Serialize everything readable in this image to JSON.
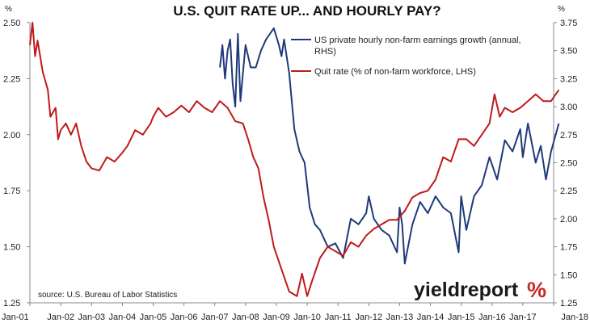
{
  "chart_data": {
    "type": "line",
    "title": "U.S. QUIT RATE UP... AND HOURLY PAY?",
    "left_axis": {
      "unit": "%",
      "ylim": [
        1.25,
        2.5
      ],
      "ticks": [
        "2.50",
        "2.25",
        "2.00",
        "1.75",
        "1.50",
        "1.25"
      ]
    },
    "right_axis": {
      "unit": "%",
      "ylim": [
        1.25,
        3.75
      ],
      "ticks": [
        "3.75",
        "3.50",
        "3.25",
        "3.00",
        "2.75",
        "2.50",
        "2.25",
        "2.00",
        "1.75",
        "1.50",
        "1.25"
      ]
    },
    "x_ticks": [
      "Jan-01",
      "Jan-02",
      "Jan-03",
      "Jan-04",
      "Jan-05",
      "Jan-06",
      "Jan-07",
      "Jan-08",
      "Jan-09",
      "Jan-10",
      "Jan-11",
      "Jan-12",
      "Jan-13",
      "Jan-14",
      "Jan-15",
      "Jan-16",
      "Jan-17",
      "Jan-18"
    ],
    "source": "source: U.S. Bureau of Labor Statistics",
    "logo": "yieldreport %",
    "legend_position": "top-right",
    "series": [
      {
        "name": "US private hourly non-farm earnings growth (annual, RHS)",
        "axis": "right",
        "color": "#1f3a7a",
        "points": [
          [
            "2007-03",
            3.35
          ],
          [
            "2007-04",
            3.55
          ],
          [
            "2007-05",
            3.25
          ],
          [
            "2007-06",
            3.5
          ],
          [
            "2007-07",
            3.6
          ],
          [
            "2007-08",
            3.2
          ],
          [
            "2007-09",
            3.0
          ],
          [
            "2007-10",
            3.65
          ],
          [
            "2007-11",
            3.05
          ],
          [
            "2007-12",
            3.3
          ],
          [
            "2008-01",
            3.55
          ],
          [
            "2008-03",
            3.35
          ],
          [
            "2008-05",
            3.35
          ],
          [
            "2008-07",
            3.5
          ],
          [
            "2008-09",
            3.6
          ],
          [
            "2008-12",
            3.7
          ],
          [
            "2009-02",
            3.55
          ],
          [
            "2009-03",
            3.45
          ],
          [
            "2009-04",
            3.6
          ],
          [
            "2009-06",
            3.3
          ],
          [
            "2009-08",
            2.8
          ],
          [
            "2009-10",
            2.6
          ],
          [
            "2009-12",
            2.5
          ],
          [
            "2010-02",
            2.1
          ],
          [
            "2010-04",
            1.95
          ],
          [
            "2010-06",
            1.9
          ],
          [
            "2010-09",
            1.75
          ],
          [
            "2010-12",
            1.78
          ],
          [
            "2011-03",
            1.65
          ],
          [
            "2011-06",
            2.0
          ],
          [
            "2011-09",
            1.95
          ],
          [
            "2011-12",
            2.05
          ],
          [
            "2012-01",
            2.2
          ],
          [
            "2012-03",
            2.0
          ],
          [
            "2012-06",
            1.9
          ],
          [
            "2012-09",
            1.85
          ],
          [
            "2012-12",
            1.7
          ],
          [
            "2013-01",
            2.1
          ],
          [
            "2013-02",
            1.95
          ],
          [
            "2013-03",
            1.6
          ],
          [
            "2013-06",
            1.95
          ],
          [
            "2013-09",
            2.15
          ],
          [
            "2013-12",
            2.05
          ],
          [
            "2014-03",
            2.2
          ],
          [
            "2014-06",
            2.1
          ],
          [
            "2014-09",
            2.05
          ],
          [
            "2014-12",
            1.7
          ],
          [
            "2015-01",
            2.2
          ],
          [
            "2015-03",
            1.9
          ],
          [
            "2015-06",
            2.2
          ],
          [
            "2015-09",
            2.3
          ],
          [
            "2015-12",
            2.55
          ],
          [
            "2016-03",
            2.35
          ],
          [
            "2016-06",
            2.7
          ],
          [
            "2016-09",
            2.6
          ],
          [
            "2016-12",
            2.8
          ],
          [
            "2017-01",
            2.55
          ],
          [
            "2017-03",
            2.85
          ],
          [
            "2017-06",
            2.5
          ],
          [
            "2017-08",
            2.65
          ],
          [
            "2017-10",
            2.35
          ],
          [
            "2017-12",
            2.6
          ],
          [
            "2018-03",
            2.85
          ]
        ]
      },
      {
        "name": "Quit rate (% of non-farm workforce, LHS)",
        "axis": "left",
        "color": "#c0191c",
        "points": [
          [
            "2001-01",
            2.4
          ],
          [
            "2001-02",
            2.5
          ],
          [
            "2001-03",
            2.35
          ],
          [
            "2001-04",
            2.42
          ],
          [
            "2001-06",
            2.28
          ],
          [
            "2001-08",
            2.2
          ],
          [
            "2001-09",
            2.08
          ],
          [
            "2001-11",
            2.12
          ],
          [
            "2001-12",
            1.98
          ],
          [
            "2002-01",
            2.02
          ],
          [
            "2002-03",
            2.05
          ],
          [
            "2002-05",
            2.0
          ],
          [
            "2002-07",
            2.05
          ],
          [
            "2002-09",
            1.95
          ],
          [
            "2002-11",
            1.88
          ],
          [
            "2003-01",
            1.85
          ],
          [
            "2003-04",
            1.84
          ],
          [
            "2003-07",
            1.9
          ],
          [
            "2003-10",
            1.88
          ],
          [
            "2004-01",
            1.92
          ],
          [
            "2004-03",
            1.95
          ],
          [
            "2004-06",
            2.02
          ],
          [
            "2004-09",
            2.0
          ],
          [
            "2004-12",
            2.05
          ],
          [
            "2005-01",
            2.08
          ],
          [
            "2005-03",
            2.12
          ],
          [
            "2005-06",
            2.08
          ],
          [
            "2005-09",
            2.1
          ],
          [
            "2005-12",
            2.13
          ],
          [
            "2006-03",
            2.1
          ],
          [
            "2006-06",
            2.15
          ],
          [
            "2006-09",
            2.12
          ],
          [
            "2006-12",
            2.1
          ],
          [
            "2007-03",
            2.15
          ],
          [
            "2007-06",
            2.12
          ],
          [
            "2007-09",
            2.06
          ],
          [
            "2007-12",
            2.05
          ],
          [
            "2008-02",
            1.98
          ],
          [
            "2008-04",
            1.9
          ],
          [
            "2008-06",
            1.85
          ],
          [
            "2008-08",
            1.72
          ],
          [
            "2008-10",
            1.62
          ],
          [
            "2008-12",
            1.5
          ],
          [
            "2009-03",
            1.4
          ],
          [
            "2009-06",
            1.3
          ],
          [
            "2009-09",
            1.28
          ],
          [
            "2009-11",
            1.38
          ],
          [
            "2010-01",
            1.28
          ],
          [
            "2010-03",
            1.35
          ],
          [
            "2010-06",
            1.45
          ],
          [
            "2010-09",
            1.5
          ],
          [
            "2010-12",
            1.48
          ],
          [
            "2011-03",
            1.46
          ],
          [
            "2011-06",
            1.52
          ],
          [
            "2011-09",
            1.5
          ],
          [
            "2011-12",
            1.55
          ],
          [
            "2012-03",
            1.58
          ],
          [
            "2012-06",
            1.6
          ],
          [
            "2012-09",
            1.62
          ],
          [
            "2012-12",
            1.62
          ],
          [
            "2013-03",
            1.66
          ],
          [
            "2013-06",
            1.72
          ],
          [
            "2013-09",
            1.74
          ],
          [
            "2013-12",
            1.75
          ],
          [
            "2014-03",
            1.8
          ],
          [
            "2014-06",
            1.9
          ],
          [
            "2014-09",
            1.88
          ],
          [
            "2014-12",
            1.98
          ],
          [
            "2015-03",
            1.98
          ],
          [
            "2015-06",
            1.95
          ],
          [
            "2015-09",
            2.0
          ],
          [
            "2015-12",
            2.05
          ],
          [
            "2016-02",
            2.18
          ],
          [
            "2016-04",
            2.08
          ],
          [
            "2016-06",
            2.12
          ],
          [
            "2016-09",
            2.1
          ],
          [
            "2016-12",
            2.12
          ],
          [
            "2017-03",
            2.15
          ],
          [
            "2017-06",
            2.18
          ],
          [
            "2017-09",
            2.15
          ],
          [
            "2017-12",
            2.15
          ],
          [
            "2018-03",
            2.2
          ]
        ]
      }
    ]
  }
}
